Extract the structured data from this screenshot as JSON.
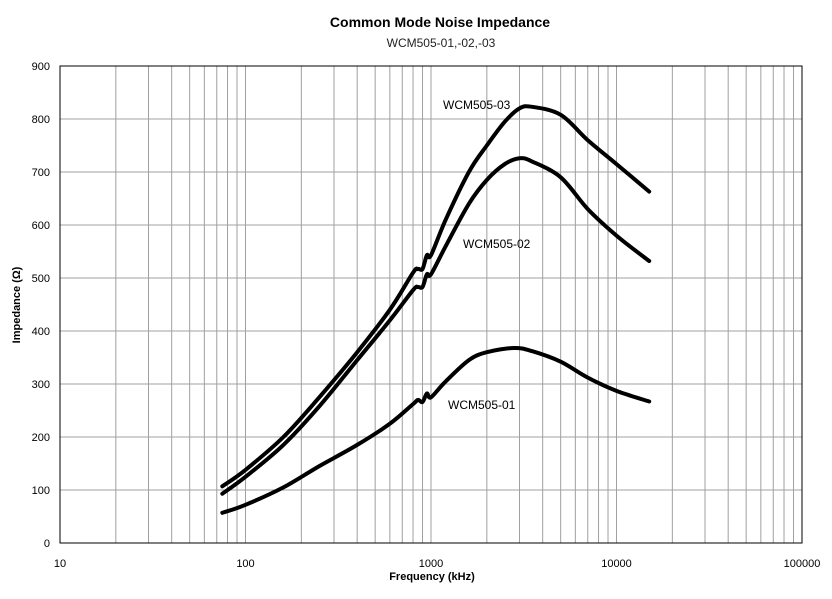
{
  "chart_data": {
    "type": "line",
    "title": "Common Mode Noise Impedance",
    "subtitle": "WCM505-01,-02,-03",
    "xlabel": "Frequency (kHz)",
    "ylabel": "Impedance (Ω)",
    "x_scale": "log",
    "xlim": [
      10,
      100000
    ],
    "ylim": [
      0,
      900
    ],
    "grid": true,
    "x_ticks": [
      "10",
      "100",
      "1000",
      "10000",
      "100000"
    ],
    "y_ticks": [
      "0",
      "100",
      "200",
      "300",
      "400",
      "500",
      "600",
      "700",
      "800",
      "900"
    ],
    "series": [
      {
        "name": "WCM505-01",
        "x": [
          75,
          100,
          160,
          250,
          400,
          600,
          800,
          850,
          900,
          950,
          1000,
          1200,
          1600,
          2000,
          2800,
          3500,
          5000,
          7000,
          10000,
          15000
        ],
        "y": [
          57,
          72,
          105,
          145,
          185,
          225,
          262,
          270,
          266,
          282,
          275,
          305,
          345,
          360,
          368,
          362,
          342,
          312,
          287,
          267
        ]
      },
      {
        "name": "WCM505-02",
        "x": [
          75,
          100,
          160,
          250,
          400,
          600,
          800,
          850,
          900,
          950,
          1000,
          1200,
          1600,
          2000,
          2500,
          3000,
          3500,
          5000,
          7000,
          10000,
          15000
        ],
        "y": [
          93,
          125,
          185,
          258,
          345,
          420,
          477,
          483,
          483,
          507,
          507,
          560,
          640,
          685,
          715,
          726,
          720,
          690,
          630,
          580,
          532
        ]
      },
      {
        "name": "WCM505-03",
        "x": [
          75,
          100,
          160,
          250,
          400,
          600,
          800,
          850,
          900,
          950,
          1000,
          1200,
          1600,
          2000,
          2500,
          3000,
          3500,
          5000,
          7000,
          10000,
          15000
        ],
        "y": [
          107,
          138,
          200,
          275,
          360,
          440,
          510,
          517,
          517,
          543,
          543,
          610,
          700,
          750,
          795,
          820,
          823,
          808,
          760,
          715,
          663
        ]
      }
    ]
  }
}
